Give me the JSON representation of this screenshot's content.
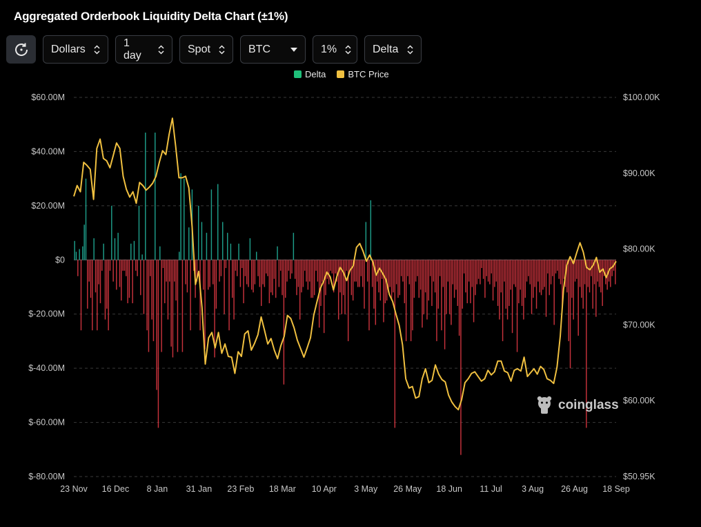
{
  "title": "Aggregated Orderbook Liquidity Delta Chart (±1%)",
  "toolbar": {
    "refresh_icon": "refresh-icon",
    "unit": "Dollars",
    "interval": "1 day",
    "market": "Spot",
    "coin": "BTC",
    "range": "1%",
    "metric": "Delta"
  },
  "watermark": "coinglass",
  "colors": {
    "delta_positive": "#1e9e8a",
    "delta_negative": "#c8323c",
    "btc_price": "#f0c040",
    "grid": "#3a3a3a",
    "background": "#000000"
  },
  "chart_data": {
    "type": "bar+line",
    "title": "Aggregated Orderbook Liquidity Delta Chart (±1%)",
    "legend": {
      "placement": "top-center",
      "entries": [
        "Delta",
        "BTC Price"
      ]
    },
    "grid": "horizontal-dashed",
    "x_ticks": [
      "23 Nov",
      "16 Dec",
      "8 Jan",
      "31 Jan",
      "23 Feb",
      "18 Mar",
      "10 Apr",
      "3 May",
      "26 May",
      "18 Jun",
      "11 Jul",
      "3 Aug",
      "26 Aug",
      "18 Sep"
    ],
    "y_left": {
      "ticks": [
        "$60.00M",
        "$40.00M",
        "$20.00M",
        "$0",
        "$-20.00M",
        "$-40.00M",
        "$-60.00M",
        "$-80.00M"
      ],
      "range": [
        -80,
        60
      ],
      "unit": "$M"
    },
    "y_right": {
      "ticks": [
        "$100.00K",
        "$90.00K",
        "$80.00K",
        "$70.00K",
        "$60.00K",
        "$50.95K"
      ],
      "range": [
        50.95,
        100
      ],
      "unit": "$K"
    },
    "series": [
      {
        "name": "Delta",
        "axis": "left",
        "kind": "bar",
        "values": [
          7,
          3,
          -6,
          4,
          -26,
          5,
          13,
          30,
          -18,
          -8,
          -14,
          -26,
          8,
          -12,
          -26,
          -9,
          -16,
          -4,
          6,
          -22,
          -18,
          -26,
          -4,
          20,
          -8,
          8,
          -11,
          10,
          -10,
          -15,
          -4,
          -4,
          -6,
          -16,
          -14,
          6,
          -16,
          7,
          -4,
          -6,
          20,
          -13,
          2,
          -20,
          47,
          -26,
          -34,
          -6,
          -22,
          -30,
          47,
          -48,
          -62,
          5,
          -34,
          -3,
          -16,
          -8,
          -22,
          -8,
          -32,
          -36,
          -8,
          -15,
          -34,
          3,
          32,
          -34,
          30,
          -9,
          -12,
          12,
          -26,
          26,
          -4,
          -14,
          -8,
          20,
          -26,
          14,
          -11,
          -33,
          10,
          -11,
          -10,
          26,
          -9,
          -36,
          -18,
          28,
          -8,
          -6,
          14,
          -20,
          -3,
          10,
          -26,
          6,
          -14,
          -22,
          -4,
          -6,
          6,
          -10,
          -3,
          -16,
          -6,
          -9,
          -10,
          8,
          -11,
          -12,
          -9,
          3,
          -6,
          -10,
          -17,
          -9,
          -10,
          -5,
          -6,
          -16,
          -12,
          -13,
          -7,
          -14,
          5,
          -10,
          -4,
          -13,
          -46,
          -14,
          -8,
          -4,
          -7,
          -5,
          10,
          -7,
          -13,
          -10,
          -22,
          -12,
          -10,
          -4,
          -8,
          -11,
          -8,
          -14,
          -14,
          -13,
          -4,
          -8,
          -25,
          -17,
          -8,
          -27,
          -13,
          -7,
          -9,
          -4,
          -5,
          -12,
          -5,
          -8,
          -22,
          -12,
          -20,
          -13,
          -20,
          -4,
          -30,
          -4,
          -13,
          -15,
          -8,
          -8,
          -10,
          -10,
          -6,
          -10,
          -18,
          14,
          -8,
          -26,
          22,
          -10,
          -18,
          -24,
          -8,
          -12,
          -15,
          -7,
          -23,
          -16,
          -15,
          -12,
          -10,
          -15,
          -12,
          -62,
          -9,
          -14,
          -13,
          -6,
          -8,
          -16,
          -30,
          -6,
          -9,
          -30,
          -26,
          -14,
          -8,
          -6,
          -14,
          -11,
          -25,
          -20,
          -12,
          -22,
          -15,
          -6,
          -17,
          -8,
          -12,
          -30,
          -18,
          -6,
          -26,
          -10,
          -33,
          -20,
          -8,
          -20,
          -24,
          -9,
          -14,
          -11,
          -17,
          -28,
          -72,
          -18,
          -5,
          -12,
          -16,
          -8,
          -16,
          -10,
          -23,
          -13,
          -9,
          -7,
          -9,
          -3,
          -7,
          -14,
          -6,
          -8,
          -9,
          -5,
          -15,
          -10,
          -8,
          -17,
          -22,
          -12,
          -30,
          -8,
          -18,
          -22,
          -17,
          -11,
          -27,
          -9,
          -10,
          -34,
          -16,
          -11,
          -17,
          -22,
          -14,
          -8,
          -6,
          -9,
          -20,
          -14,
          -10,
          -18,
          -8,
          -12,
          -13,
          -11,
          -10,
          -21,
          -5,
          -13,
          -9,
          -6,
          -24,
          -5,
          -4,
          -7,
          -9,
          -18,
          -7,
          -10,
          -12,
          -30,
          -40,
          -14,
          -22,
          -8,
          -7,
          -28,
          -10,
          -14,
          -18,
          -9,
          -62,
          -10,
          -12,
          -6,
          -18,
          -9,
          -21,
          -8,
          -10,
          -12,
          -17,
          -6,
          -9,
          -11,
          -8,
          -10,
          -6,
          -4,
          -9
        ]
      },
      {
        "name": "BTC Price",
        "axis": "right",
        "kind": "line",
        "values": [
          87.2,
          88.6,
          87.8,
          91.6,
          91.2,
          90.7,
          86.8,
          93.4,
          94.6,
          92.1,
          91.8,
          90.9,
          92.5,
          94.1,
          93.4,
          89.8,
          88.1,
          87.1,
          87.8,
          86.3,
          89.0,
          88.6,
          88.0,
          88.4,
          88.9,
          89.8,
          91.6,
          93.1,
          92.6,
          95.2,
          97.3,
          93.6,
          89.6,
          89.6,
          89.8,
          88.3,
          83.2,
          75.8,
          77.5,
          72.8,
          65.5,
          68.9,
          69.6,
          67.6,
          69.6,
          66.9,
          68.1,
          66.5,
          66.4,
          64.3,
          67.1,
          66.5,
          69.4,
          69.8,
          67.3,
          68.2,
          69.3,
          71.6,
          69.9,
          68.1,
          68.8,
          67.3,
          66.2,
          67.9,
          69.1,
          71.8,
          71.4,
          70.2,
          68.6,
          67.5,
          66.4,
          67.6,
          68.9,
          71.8,
          73.6,
          75.3,
          76.2,
          77.4,
          76.8,
          75.1,
          76.8,
          78.0,
          77.4,
          76.3,
          77.6,
          78.2,
          80.6,
          81.1,
          80.1,
          78.8,
          79.6,
          78.7,
          77.0,
          77.9,
          77.2,
          76.4,
          74.5,
          73.6,
          72.0,
          70.5,
          68.0,
          63.6,
          62.4,
          62.6,
          61.1,
          61.3,
          63.6,
          64.9,
          63.1,
          63.4,
          65.4,
          64.2,
          63.5,
          63.2,
          61.5,
          60.6,
          60.0,
          59.6,
          60.9,
          63.1,
          63.6,
          64.3,
          64.5,
          63.9,
          63.3,
          63.6,
          64.7,
          64.1,
          64.5,
          65.9,
          65.9,
          64.6,
          64.4,
          63.3,
          64.7,
          64.9,
          64.6,
          66.4,
          63.9,
          64.4,
          64.9,
          64.2,
          65.2,
          64.8,
          63.6,
          63.4,
          63.0,
          65.1,
          69.1,
          75.2,
          78.3,
          79.4,
          78.5,
          79.9,
          81.2,
          80.0,
          78.0,
          77.7,
          78.3,
          79.3,
          77.4,
          77.8,
          76.7,
          77.8,
          78.1,
          78.8
        ]
      }
    ]
  }
}
